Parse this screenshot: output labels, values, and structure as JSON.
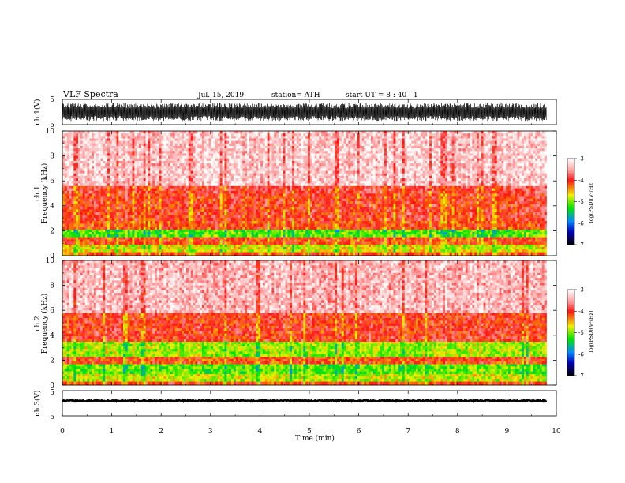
{
  "chart_data": {
    "type": "heatmap",
    "title": "VLF  Spectra",
    "date": "Jul.  15, 2019",
    "station": "station= ATH",
    "start_ut": "start  UT  =    8  : 40 : 1",
    "xlabel": "Time  (min)",
    "xlim": [
      0,
      10
    ],
    "x_ticks": [
      "0",
      "1",
      "2",
      "3",
      "4",
      "5",
      "6",
      "7",
      "8",
      "9",
      "10"
    ],
    "data_end_min": 9.8,
    "panels": [
      {
        "id": "ch1-waveform",
        "type": "line",
        "ylabel": "ch.1(V)",
        "ylim": [
          -5,
          5
        ],
        "y_ticks": [
          "5",
          "-5"
        ],
        "color": "#000000",
        "amplitude_range_v": [
          -3.5,
          3.5
        ]
      },
      {
        "id": "ch1-spectrogram",
        "type": "heatmap",
        "ylabel_top": "ch.1",
        "ylabel": "Frequency  (kHz)",
        "ylim": [
          0,
          10
        ],
        "y_ticks": [
          "0",
          "2",
          "4",
          "6",
          "8",
          "10"
        ],
        "colorbar": {
          "label": "log(PSD)(V²/Hz)",
          "range": [
            -7,
            -3
          ],
          "ticks": [
            "-3",
            "-4",
            "-5",
            "-6",
            "-7"
          ]
        },
        "bands_khz": [
          {
            "from": 0.0,
            "to": 0.3,
            "level": -4.2
          },
          {
            "from": 0.3,
            "to": 0.9,
            "level": -4.7
          },
          {
            "from": 0.9,
            "to": 1.5,
            "level": -4.1
          },
          {
            "from": 1.5,
            "to": 2.1,
            "level": -5.1
          },
          {
            "from": 2.1,
            "to": 2.8,
            "level": -4.1
          },
          {
            "from": 2.8,
            "to": 3.5,
            "level": -4.0
          },
          {
            "from": 3.5,
            "to": 5.0,
            "level": -4.0
          },
          {
            "from": 5.0,
            "to": 5.6,
            "level": -3.9
          },
          {
            "from": 5.6,
            "to": 10.0,
            "level": -3.3
          }
        ]
      },
      {
        "id": "ch2-spectrogram",
        "type": "heatmap",
        "ylabel_top": "ch.2",
        "ylabel": "Frequency  (kHz)",
        "ylim": [
          0,
          10
        ],
        "y_ticks": [
          "0",
          "2",
          "4",
          "6",
          "8",
          "10"
        ],
        "colorbar": {
          "label": "log(PSD)(V²/Hz)",
          "range": [
            -7,
            -3
          ],
          "ticks": [
            "-3",
            "-4",
            "-5",
            "-6",
            "-7"
          ]
        },
        "bands_khz": [
          {
            "from": 0.0,
            "to": 0.3,
            "level": -4.1
          },
          {
            "from": 0.3,
            "to": 0.9,
            "level": -4.8
          },
          {
            "from": 0.9,
            "to": 1.7,
            "level": -5.1
          },
          {
            "from": 1.7,
            "to": 2.3,
            "level": -4.1
          },
          {
            "from": 2.3,
            "to": 3.5,
            "level": -4.9
          },
          {
            "from": 3.5,
            "to": 5.8,
            "level": -4.0
          },
          {
            "from": 5.8,
            "to": 10.0,
            "level": -3.4
          }
        ]
      },
      {
        "id": "ch3-waveform",
        "type": "line",
        "ylabel": "ch.3(V)",
        "ylim": [
          -5,
          5
        ],
        "y_ticks": [
          "5",
          "-5"
        ],
        "color": "#000000",
        "level_v": 1.0
      }
    ]
  }
}
